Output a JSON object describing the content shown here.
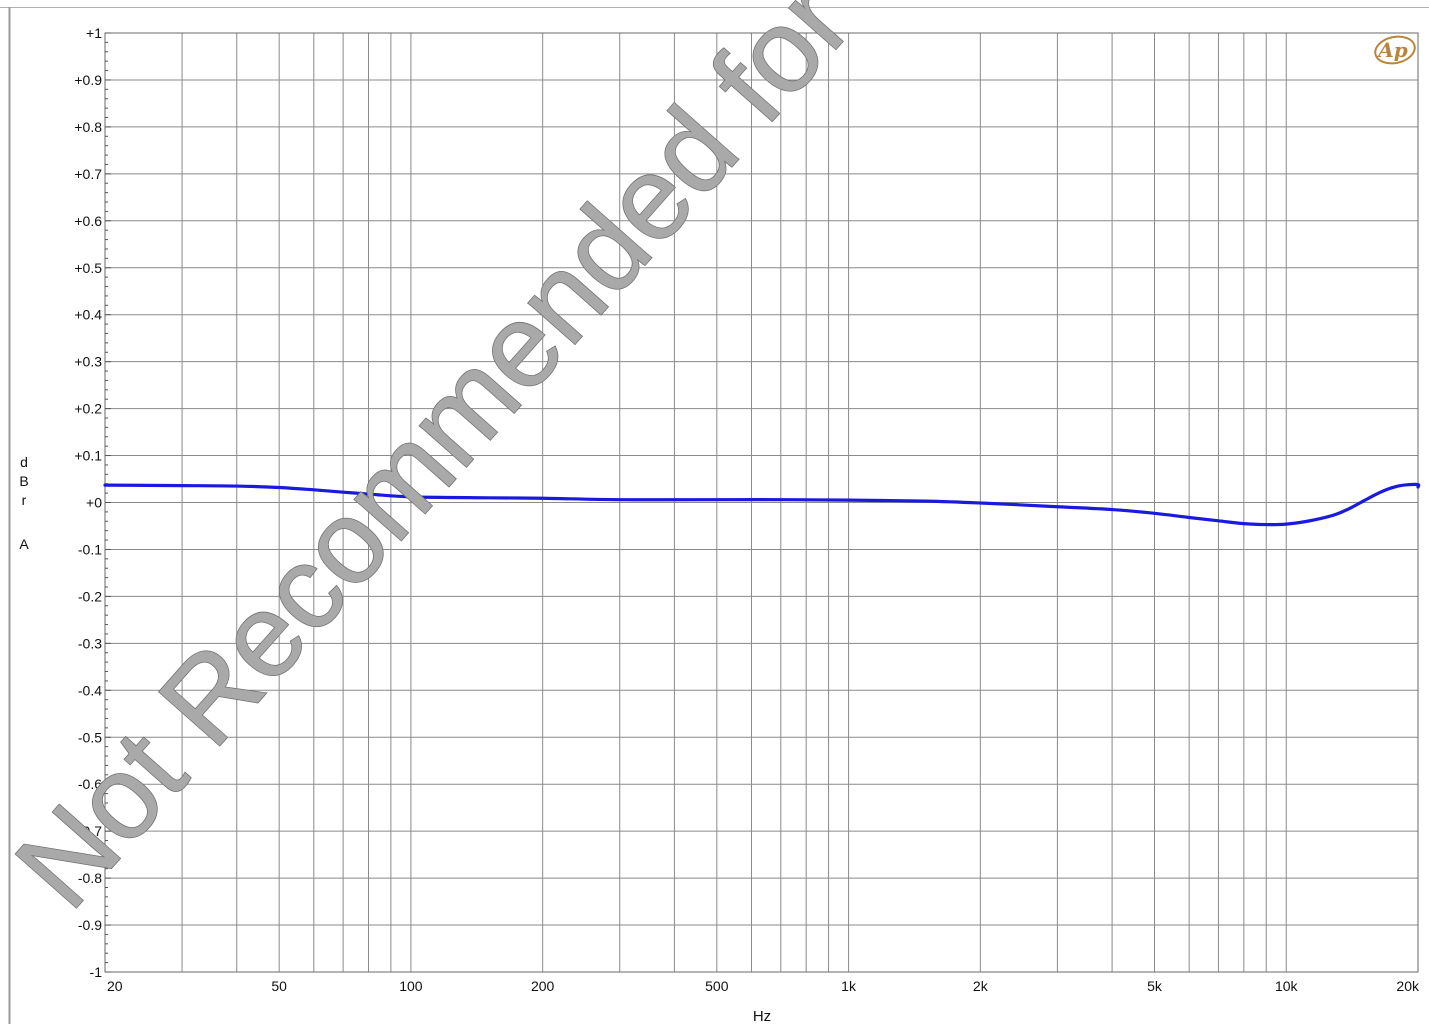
{
  "chart_data": {
    "type": "line",
    "xscale": "log",
    "xlabel": "Hz",
    "ylabel_letters": [
      "d",
      "B",
      "r",
      "",
      "A"
    ],
    "xlim": [
      20,
      20000
    ],
    "ylim": [
      -1,
      1
    ],
    "x_ticks": [
      {
        "value": 20,
        "label": "20"
      },
      {
        "value": 50,
        "label": "50"
      },
      {
        "value": 100,
        "label": "100"
      },
      {
        "value": 200,
        "label": "200"
      },
      {
        "value": 500,
        "label": "500"
      },
      {
        "value": 1000,
        "label": "1k"
      },
      {
        "value": 2000,
        "label": "2k"
      },
      {
        "value": 5000,
        "label": "5k"
      },
      {
        "value": 10000,
        "label": "10k"
      },
      {
        "value": 20000,
        "label": "20k"
      }
    ],
    "y_ticks": [
      {
        "value": 1,
        "label": "+1"
      },
      {
        "value": 0.9,
        "label": "+0.9"
      },
      {
        "value": 0.8,
        "label": "+0.8"
      },
      {
        "value": 0.7,
        "label": "+0.7"
      },
      {
        "value": 0.6,
        "label": "+0.6"
      },
      {
        "value": 0.5,
        "label": "+0.5"
      },
      {
        "value": 0.4,
        "label": "+0.4"
      },
      {
        "value": 0.3,
        "label": "+0.3"
      },
      {
        "value": 0.2,
        "label": "+0.2"
      },
      {
        "value": 0.1,
        "label": "+0.1"
      },
      {
        "value": 0,
        "label": "+0"
      },
      {
        "value": -0.1,
        "label": "-0.1"
      },
      {
        "value": -0.2,
        "label": "-0.2"
      },
      {
        "value": -0.3,
        "label": "-0.3"
      },
      {
        "value": -0.4,
        "label": "-0.4"
      },
      {
        "value": -0.5,
        "label": "-0.5"
      },
      {
        "value": -0.6,
        "label": "-0.6"
      },
      {
        "value": -0.7,
        "label": "-0.7"
      },
      {
        "value": -0.8,
        "label": "-0.8"
      },
      {
        "value": -0.9,
        "label": "-0.9"
      },
      {
        "value": -1,
        "label": "-1"
      }
    ],
    "grid": true,
    "series": [
      {
        "color": "#1a1adf",
        "x": [
          20,
          30,
          40,
          50,
          60,
          70,
          80,
          100,
          150,
          200,
          300,
          500,
          700,
          1000,
          1500,
          2000,
          3000,
          4000,
          5000,
          6000,
          7000,
          8000,
          9000,
          10000,
          11000,
          12000,
          13000,
          14000,
          15000,
          16000,
          17000,
          18000,
          19000,
          20000,
          21000
        ],
        "y": [
          0.037,
          0.036,
          0.035,
          0.032,
          0.027,
          0.022,
          0.018,
          0.012,
          0.01,
          0.009,
          0.006,
          0.006,
          0.006,
          0.005,
          0.003,
          -0.001,
          -0.009,
          -0.015,
          -0.023,
          -0.032,
          -0.039,
          -0.045,
          -0.047,
          -0.046,
          -0.041,
          -0.034,
          -0.025,
          -0.012,
          0.003,
          0.017,
          0.028,
          0.035,
          0.038,
          0.038,
          0.033
        ]
      }
    ]
  },
  "watermark": {
    "text": "Not Recommended for"
  },
  "logo": {
    "text": "Ap",
    "color": "#b8863b"
  }
}
